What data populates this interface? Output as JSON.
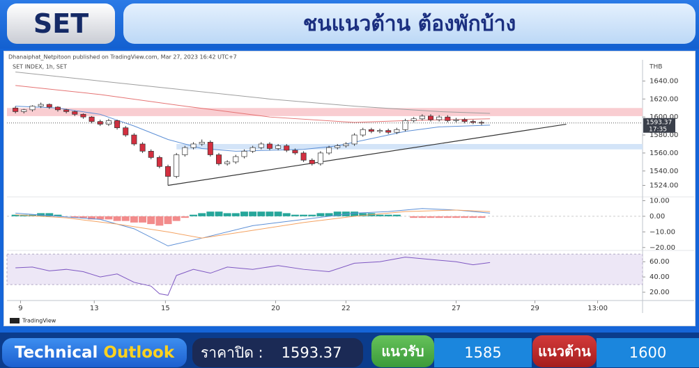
{
  "header": {
    "ticker": "SET",
    "title": "ชนแนวต้าน ต้องพักบ้าง"
  },
  "footer": {
    "brand_1": "Technical",
    "brand_2": "Outlook",
    "close_label": "ราคาปิด :",
    "close_value": 1593.37,
    "support_label": "แนวรับ",
    "support_value": 1585,
    "resistance_label": "แนวต้าน",
    "resistance_value": 1600
  },
  "chart_data": {
    "type": "candlestick",
    "attribution": "Dhanaiphat_Netpitoon published on TradingView.com, Mar 27, 2023 16:42 UTC+7",
    "symbol_label": "SET INDEX, 1h, SET",
    "currency": "THB",
    "logo": "TradingView",
    "up_color": "#ffffff",
    "down_color": "#d32f3f",
    "xlim": [
      -1,
      74
    ],
    "xticks": [
      {
        "value": 0.6,
        "label": "9"
      },
      {
        "value": 9.3,
        "label": "13"
      },
      {
        "value": 17.7,
        "label": "15"
      },
      {
        "value": 30.7,
        "label": "20"
      },
      {
        "value": 39,
        "label": "22"
      },
      {
        "value": 52,
        "label": "27"
      },
      {
        "value": 61.3,
        "label": "29"
      },
      {
        "value": 68.7,
        "label": "13:00"
      }
    ],
    "ylim": [
      1512,
      1662
    ],
    "yticks": [
      {
        "value": 1524,
        "label": "1524.00"
      },
      {
        "value": 1540,
        "label": "1540.00"
      },
      {
        "value": 1560,
        "label": "1560.00"
      },
      {
        "value": 1580,
        "label": "1580.00"
      },
      {
        "value": 1600,
        "label": "1600.00"
      },
      {
        "value": 1620,
        "label": "1620.00"
      },
      {
        "value": 1640,
        "label": "1640.00"
      }
    ],
    "open": [
      1610,
      1606,
      1608,
      1612,
      1614,
      1611,
      1608,
      1606,
      1603,
      1600,
      1595,
      1592,
      1596,
      1588,
      1580,
      1570,
      1562,
      1555,
      1545,
      1534,
      1558,
      1566,
      1570,
      1572,
      1558,
      1548,
      1550,
      1556,
      1562,
      1566,
      1570,
      1565,
      1568,
      1563,
      1560,
      1552,
      1548,
      1560,
      1566,
      1568,
      1570,
      1580,
      1586,
      1584,
      1585,
      1583,
      1586,
      1596,
      1598,
      1601,
      1597,
      1600,
      1596,
      1597,
      1595,
      1594
    ],
    "high": [
      1612,
      1609,
      1613,
      1616,
      1615,
      1612,
      1609,
      1607,
      1604,
      1601,
      1597,
      1598,
      1597,
      1590,
      1582,
      1572,
      1564,
      1557,
      1547,
      1560,
      1568,
      1572,
      1575,
      1574,
      1560,
      1552,
      1558,
      1564,
      1568,
      1572,
      1572,
      1570,
      1570,
      1565,
      1562,
      1554,
      1562,
      1568,
      1570,
      1572,
      1582,
      1588,
      1588,
      1587,
      1587,
      1588,
      1598,
      1600,
      1603,
      1603,
      1602,
      1602,
      1599,
      1599,
      1597,
      1596
    ],
    "low": [
      1604,
      1604,
      1606,
      1610,
      1609,
      1606,
      1604,
      1601,
      1598,
      1593,
      1590,
      1590,
      1586,
      1578,
      1568,
      1560,
      1553,
      1543,
      1524,
      1532,
      1556,
      1564,
      1568,
      1556,
      1546,
      1546,
      1548,
      1554,
      1560,
      1564,
      1563,
      1563,
      1561,
      1558,
      1550,
      1546,
      1546,
      1558,
      1564,
      1566,
      1568,
      1578,
      1582,
      1582,
      1581,
      1581,
      1584,
      1594,
      1596,
      1595,
      1595,
      1594,
      1594,
      1593,
      1592,
      1591
    ],
    "close": [
      1606,
      1608,
      1612,
      1614,
      1611,
      1608,
      1606,
      1603,
      1600,
      1595,
      1592,
      1596,
      1588,
      1580,
      1570,
      1562,
      1555,
      1545,
      1534,
      1558,
      1566,
      1570,
      1572,
      1558,
      1548,
      1550,
      1556,
      1562,
      1566,
      1570,
      1565,
      1568,
      1563,
      1560,
      1552,
      1548,
      1560,
      1566,
      1568,
      1570,
      1580,
      1586,
      1584,
      1585,
      1583,
      1586,
      1596,
      1598,
      1601,
      1597,
      1600,
      1596,
      1597,
      1595,
      1594,
      1593.37
    ],
    "last_price": 1593.37,
    "time_label": "17:35",
    "zones": [
      {
        "from": 1601,
        "to": 1610,
        "color": "#f9cdd1"
      },
      {
        "from": 1564,
        "to": 1570,
        "color": "#d3e4f8",
        "start": 19
      }
    ],
    "trendline": {
      "x": [
        18,
        65
      ],
      "values": [
        1524,
        1592
      ],
      "color": "#333333"
    },
    "overlays": [
      {
        "color": "#9e9e9e",
        "x": [
          0,
          10,
          20,
          30,
          40,
          50,
          56
        ],
        "values": [
          1650,
          1640,
          1630,
          1620,
          1612,
          1606,
          1604
        ]
      },
      {
        "color": "#e57373",
        "x": [
          0,
          10,
          20,
          30,
          40,
          46,
          56
        ],
        "values": [
          1635,
          1625,
          1612,
          1600,
          1594,
          1596,
          1598
        ]
      },
      {
        "color": "#5c8fd6",
        "x": [
          0,
          5,
          10,
          14,
          18,
          22,
          26,
          30,
          34,
          38,
          42,
          46,
          50,
          56
        ],
        "values": [
          1612,
          1610,
          1603,
          1590,
          1575,
          1565,
          1562,
          1563,
          1564,
          1568,
          1576,
          1584,
          1589,
          1591
        ]
      }
    ],
    "macd": {
      "ylim": [
        -21,
        12
      ],
      "yticks": [
        {
          "value": 10,
          "label": "10.00"
        },
        {
          "value": 0,
          "label": "0.00"
        },
        {
          "value": -10,
          "label": "−10.00"
        },
        {
          "value": -20,
          "label": "−20.00"
        }
      ],
      "pos_color": "#26a69a",
      "neg_color": "#f28b8b",
      "histogram": [
        1,
        1,
        1,
        2,
        2,
        1,
        0,
        -1,
        -1,
        -2,
        -2,
        -2,
        -3,
        -3,
        -4,
        -4,
        -5,
        -6,
        -5,
        -3,
        -1,
        1,
        2,
        3,
        3,
        2,
        2,
        3,
        3,
        3,
        3,
        3,
        2,
        1,
        1,
        1,
        2,
        2,
        3,
        3,
        3,
        2,
        2,
        1,
        1,
        1,
        0,
        -1,
        -1,
        -1,
        -1,
        -1,
        -1,
        -1,
        -1,
        -1
      ],
      "lines": [
        {
          "color": "#5c8fd6",
          "x": [
            0,
            5,
            10,
            14,
            18,
            22,
            28,
            34,
            40,
            44,
            48,
            52,
            56
          ],
          "values": [
            2,
            0,
            -2,
            -8,
            -19,
            -14,
            -6,
            -2,
            2,
            3,
            5,
            4,
            2
          ]
        },
        {
          "color": "#f4a261",
          "x": [
            0,
            6,
            12,
            18,
            22,
            28,
            34,
            40,
            46,
            52,
            56
          ],
          "values": [
            1,
            -1,
            -5,
            -10,
            -14,
            -9,
            -4,
            0,
            3,
            4,
            3
          ]
        }
      ]
    },
    "rsi": {
      "ylim": [
        10,
        73
      ],
      "yticks": [
        {
          "value": 20,
          "label": "20.00"
        },
        {
          "value": 40,
          "label": "40.00"
        },
        {
          "value": 60,
          "label": "60.00"
        }
      ],
      "band": [
        30,
        70
      ],
      "color": "#7e57c2",
      "x": [
        0,
        2,
        4,
        6,
        8,
        10,
        12,
        14,
        16,
        17,
        18,
        19,
        21,
        23,
        25,
        28,
        31,
        34,
        37,
        40,
        43,
        46,
        49,
        52,
        54,
        56
      ],
      "values": [
        52,
        53,
        48,
        50,
        47,
        40,
        44,
        33,
        28,
        18,
        16,
        42,
        50,
        45,
        53,
        50,
        55,
        50,
        47,
        58,
        60,
        66,
        63,
        60,
        56,
        59
      ]
    }
  }
}
